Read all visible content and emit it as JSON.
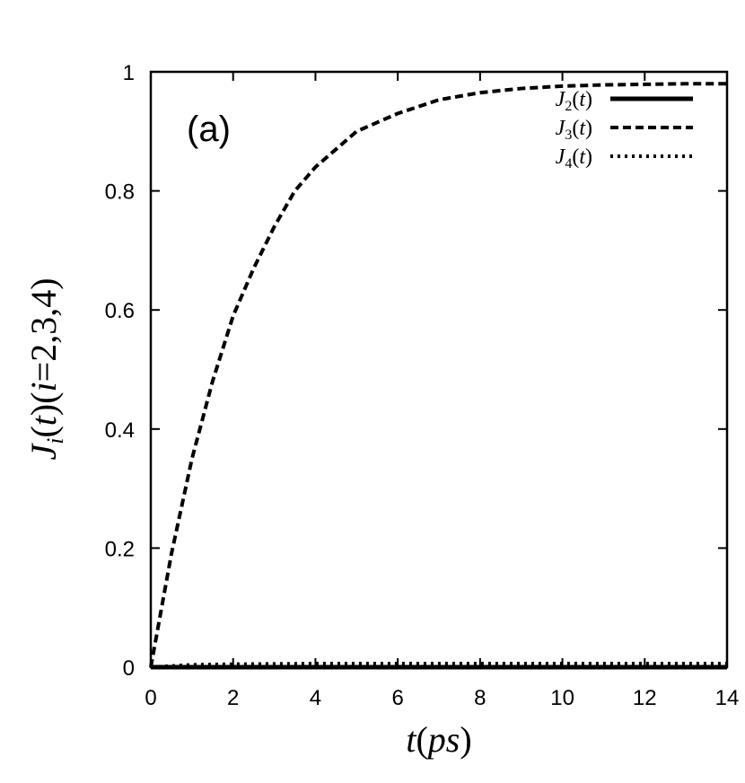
{
  "chart_data": {
    "type": "line",
    "panel_label": "(a)",
    "xlabel": "t(ps)",
    "ylabel": "J_i(t)(i=2,3,4)",
    "xlim": [
      0,
      14
    ],
    "ylim": [
      0,
      1
    ],
    "xticks": [
      0,
      2,
      4,
      6,
      8,
      10,
      12,
      14
    ],
    "yticks": [
      0,
      0.2,
      0.4,
      0.6,
      0.8,
      1
    ],
    "ytick_labels": [
      "0",
      "0.2",
      "0.4",
      "0.6",
      "0.8",
      "1"
    ],
    "grid": false,
    "legend_position": "top-right",
    "series": [
      {
        "name": "J_2(t)",
        "style": "solid",
        "x": [
          0,
          2,
          4,
          6,
          8,
          10,
          12,
          14
        ],
        "y": [
          0,
          0,
          0,
          0,
          0,
          0,
          0,
          0
        ]
      },
      {
        "name": "J_3(t)",
        "style": "dashed",
        "x": [
          0,
          0.5,
          1,
          1.5,
          2,
          2.5,
          3,
          3.5,
          4,
          4.5,
          5,
          6,
          7,
          8,
          9,
          10,
          11,
          12,
          13,
          14
        ],
        "y": [
          0,
          0.19,
          0.35,
          0.48,
          0.59,
          0.67,
          0.74,
          0.8,
          0.84,
          0.87,
          0.9,
          0.93,
          0.953,
          0.965,
          0.972,
          0.976,
          0.978,
          0.979,
          0.98,
          0.98
        ]
      },
      {
        "name": "J_4(t)",
        "style": "dotted",
        "x": [
          0,
          1,
          2,
          4,
          6,
          8,
          10,
          12,
          14
        ],
        "y": [
          0,
          0.004,
          0.005,
          0.006,
          0.006,
          0.006,
          0.006,
          0.006,
          0.006
        ]
      }
    ]
  }
}
